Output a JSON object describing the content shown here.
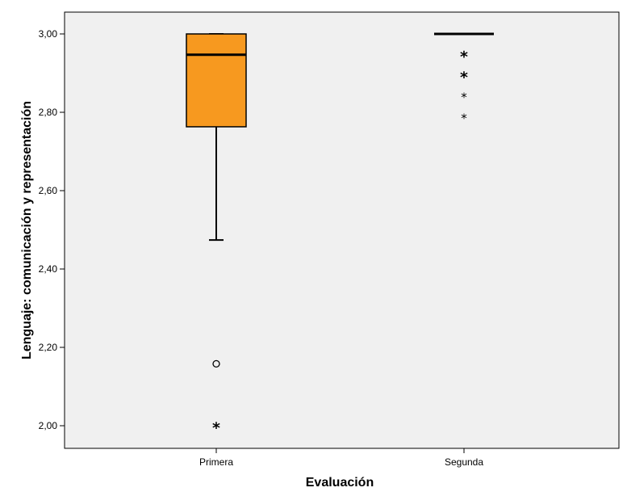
{
  "chart_data": {
    "type": "boxplot",
    "xlabel": "Evaluación",
    "ylabel": "Lenguaje: comunicación y representación",
    "ylim": [
      1.97,
      3.06
    ],
    "yticks": [
      2.0,
      2.2,
      2.4,
      2.6,
      2.8,
      3.0
    ],
    "ytick_labels": [
      "2,00",
      "2,20",
      "2,40",
      "2,60",
      "2,80",
      "3,00"
    ],
    "grid": false,
    "categories": [
      "Primera",
      "Segunda"
    ],
    "boxes": [
      {
        "category": "Primera",
        "q1": 2.763,
        "median": 2.947,
        "q3": 3.0,
        "whisker_low": 2.474,
        "whisker_high": 3.0,
        "outliers": [
          2.158
        ],
        "extremes": [
          2.0
        ]
      },
      {
        "category": "Segunda",
        "q1": 3.0,
        "median": 3.0,
        "q3": 3.0,
        "whisker_low": 3.0,
        "whisker_high": 3.0,
        "outliers": [],
        "extremes": [
          2.947,
          2.895,
          2.842,
          2.789
        ]
      }
    ],
    "colors": {
      "box_fill": "#f7991f",
      "plot_background": "#f0f0f0",
      "line": "#000000"
    }
  }
}
